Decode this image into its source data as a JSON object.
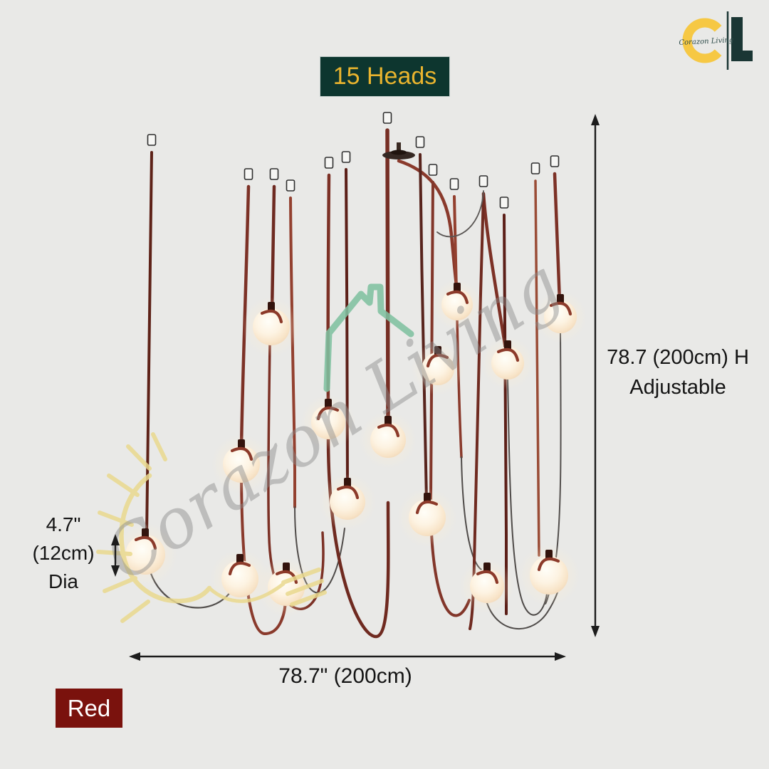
{
  "badge": {
    "label": "15 Heads"
  },
  "logo": {
    "script": "Corazon Living"
  },
  "watermark": {
    "script": "Corazon Living"
  },
  "product": {
    "heads_count": "15",
    "color_name": "Red",
    "colors": {
      "background": "#e9e9e7",
      "strap_red": "#7e3227",
      "badge_bg": "#0d362f",
      "badge_text": "#e9b42e",
      "color_chip_bg": "#7a120d",
      "logo_yellow": "#f6c844",
      "logo_teal": "#1a3634"
    }
  },
  "dimensions": {
    "height_line1": "78.7 (200cm) H",
    "height_line2": "Adjustable",
    "width": "78.7\" (200cm)",
    "dia_line1": "4.7\"",
    "dia_line2": "(12cm)",
    "dia_line3": "Dia"
  }
}
